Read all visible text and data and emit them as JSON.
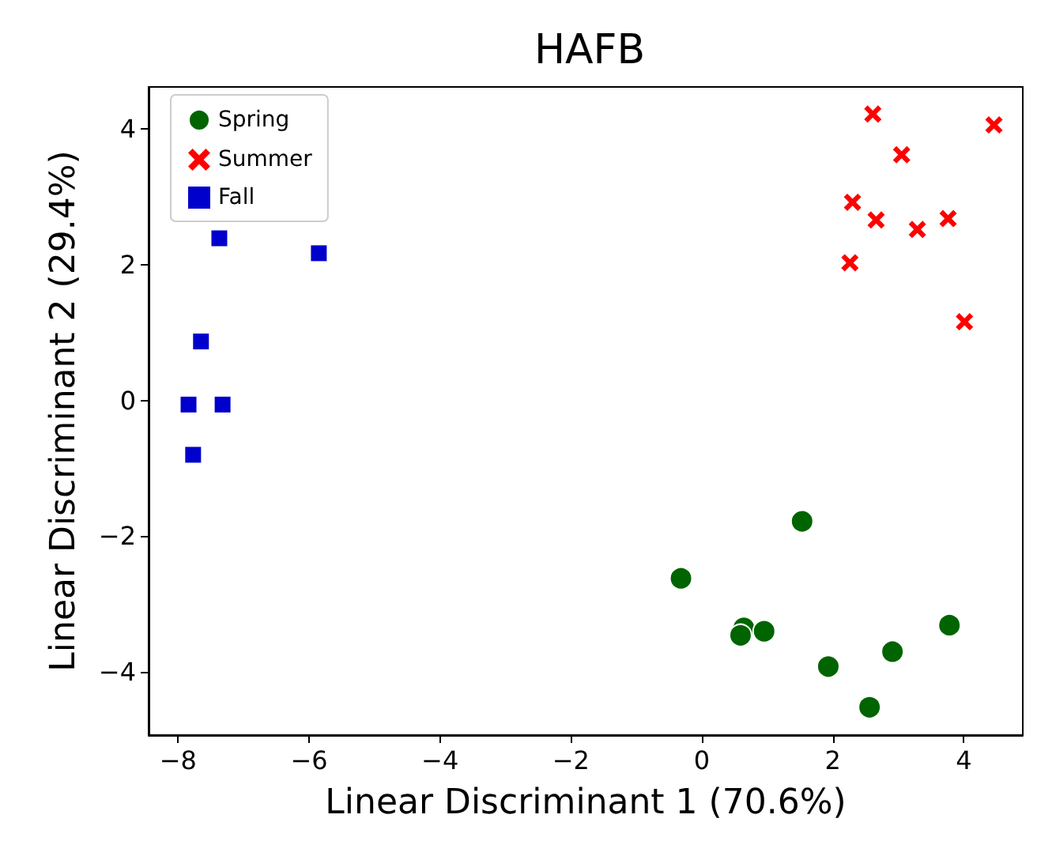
{
  "chart_data": {
    "type": "scatter",
    "title": "HAFB",
    "xlabel": "Linear Discriminant 1 (70.6%)",
    "ylabel": "Linear Discriminant 2 (29.4%)",
    "xlim": [
      -8.45,
      4.9
    ],
    "ylim": [
      -4.93,
      4.62
    ],
    "xticks": [
      -8,
      -6,
      -4,
      -2,
      0,
      2,
      4
    ],
    "yticks": [
      -4,
      -2,
      0,
      2,
      4
    ],
    "grid": false,
    "legend": "top left",
    "series": [
      {
        "name": "Spring",
        "color": "#006400",
        "marker": "circle",
        "x": [
          1.53,
          -0.32,
          0.64,
          0.59,
          0.95,
          3.78,
          2.91,
          1.93,
          2.56
        ],
        "values": [
          -1.78,
          -2.62,
          -3.35,
          -3.46,
          -3.4,
          -3.31,
          -3.7,
          -3.92,
          -4.52
        ]
      },
      {
        "name": "Summer",
        "color": "#ff0000",
        "marker": "cross",
        "x": [
          2.61,
          4.46,
          3.05,
          2.3,
          2.66,
          3.29,
          3.76,
          2.26,
          4.01
        ],
        "values": [
          4.22,
          4.06,
          3.62,
          2.92,
          2.66,
          2.52,
          2.68,
          2.03,
          1.16
        ]
      },
      {
        "name": "Fall",
        "color": "#0000cc",
        "marker": "square",
        "x": [
          -7.37,
          -5.85,
          -7.65,
          -7.84,
          -7.32,
          -7.77
        ],
        "values": [
          2.39,
          2.17,
          0.87,
          -0.06,
          -0.06,
          -0.8
        ]
      }
    ]
  }
}
